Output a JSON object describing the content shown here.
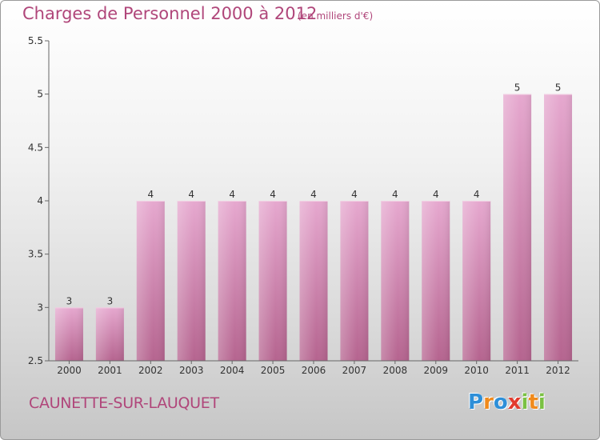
{
  "chart_data": {
    "type": "bar",
    "title": "Charges de Personnel 2000 à 2012",
    "subtitle": "(en milliers d'€)",
    "categories": [
      "2000",
      "2001",
      "2002",
      "2003",
      "2004",
      "2005",
      "2006",
      "2007",
      "2008",
      "2009",
      "2010",
      "2011",
      "2012"
    ],
    "values": [
      3,
      3,
      4,
      4,
      4,
      4,
      4,
      4,
      4,
      4,
      4,
      5,
      5
    ],
    "data_labels": [
      "3",
      "3",
      "4",
      "4",
      "4",
      "4",
      "4",
      "4",
      "4",
      "4",
      "4",
      "5",
      "5"
    ],
    "ylim": [
      2.5,
      5.5
    ],
    "yticks": [
      "2.5",
      "3",
      "3.5",
      "4",
      "4.5",
      "5",
      "5.5"
    ],
    "ytick_values": [
      2.5,
      3,
      3.5,
      4,
      4.5,
      5,
      5.5
    ],
    "xlabel": "",
    "ylabel": "",
    "grid": false,
    "bar_color": "#dc9cc4"
  },
  "footer": {
    "commune": "CAUNETTE-SUR-LAUQUET",
    "logo_letters": [
      {
        "ch": "P",
        "color": "#2e8fd8"
      },
      {
        "ch": "r",
        "color": "#f08a1c"
      },
      {
        "ch": "o",
        "color": "#2e8fd8"
      },
      {
        "ch": "x",
        "color": "#e23b2e"
      },
      {
        "ch": "i",
        "color": "#7ac142"
      },
      {
        "ch": "t",
        "color": "#f08a1c"
      },
      {
        "ch": "i",
        "color": "#7ac142"
      }
    ]
  }
}
